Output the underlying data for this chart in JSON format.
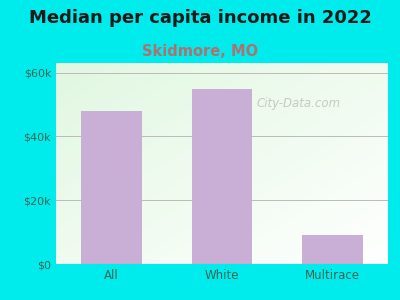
{
  "title": "Median per capita income in 2022",
  "subtitle": "Skidmore, MO",
  "categories": [
    "All",
    "White",
    "Multirace"
  ],
  "values": [
    48000,
    55000,
    9000
  ],
  "bar_color": "#c9aed6",
  "background_color": "#00ecec",
  "title_fontsize": 13,
  "subtitle_fontsize": 10.5,
  "subtitle_color": "#b07070",
  "tick_color": "#336655",
  "ylim": [
    0,
    63000
  ],
  "yticks": [
    0,
    20000,
    40000,
    60000
  ],
  "ytick_labels": [
    "$0",
    "$20k",
    "$40k",
    "$60k"
  ],
  "watermark": "City-Data.com",
  "grid_color": "#bbbbbb"
}
